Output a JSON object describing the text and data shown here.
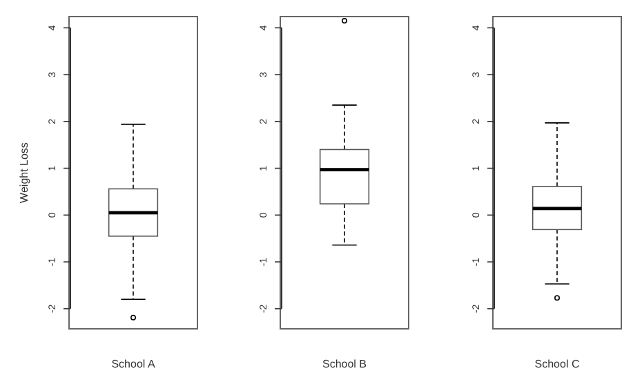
{
  "chart_data": [
    {
      "type": "box",
      "ylabel": "Weight Loss",
      "categories": [
        "School A"
      ],
      "ylim": [
        -2.43,
        4.24
      ],
      "yticks": [
        -2,
        -1,
        0,
        1,
        2,
        3,
        4
      ],
      "boxes": [
        {
          "low": -1.8,
          "q1": -0.45,
          "median": 0.05,
          "q3": 0.56,
          "high": 1.94,
          "outliers": [
            -2.19
          ]
        }
      ]
    },
    {
      "type": "box",
      "categories": [
        "School B"
      ],
      "ylim": [
        -2.43,
        4.24
      ],
      "yticks": [
        -2,
        -1,
        0,
        1,
        2,
        3,
        4
      ],
      "boxes": [
        {
          "low": -0.64,
          "q1": 0.24,
          "median": 0.97,
          "q3": 1.4,
          "high": 2.35,
          "outliers": [
            4.15
          ]
        }
      ]
    },
    {
      "type": "box",
      "categories": [
        "School C"
      ],
      "ylim": [
        -2.43,
        4.24
      ],
      "yticks": [
        -2,
        -1,
        0,
        1,
        2,
        3,
        4
      ],
      "boxes": [
        {
          "low": -1.47,
          "q1": -0.31,
          "median": 0.14,
          "q3": 0.61,
          "high": 1.97,
          "outliers": [
            -1.77
          ]
        }
      ]
    }
  ]
}
